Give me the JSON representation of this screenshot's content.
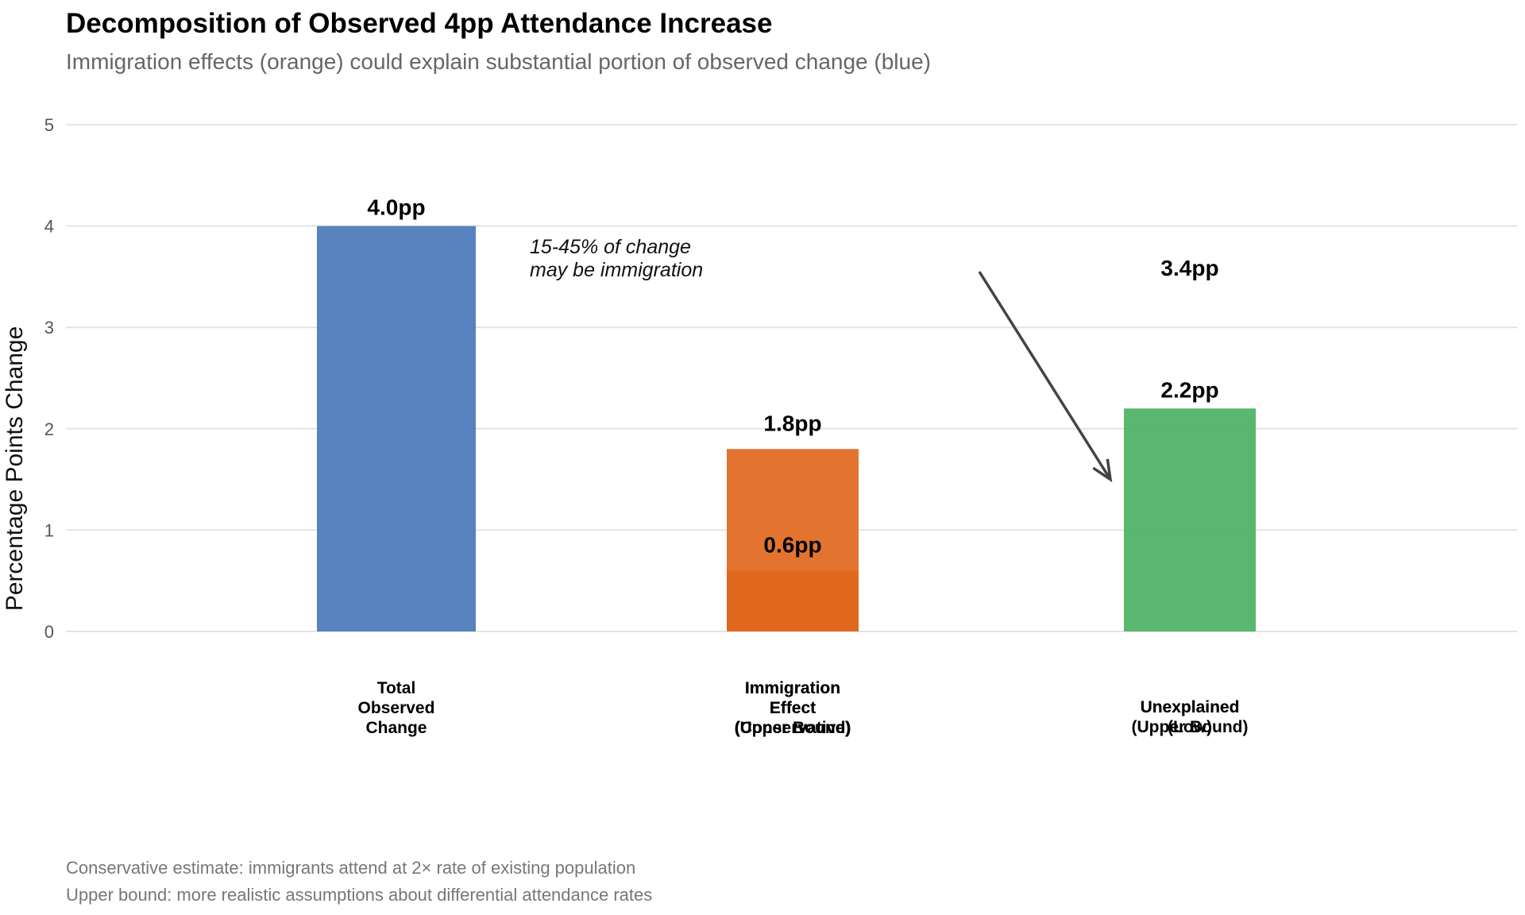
{
  "title": "Decomposition of Observed 4pp Attendance Increase",
  "subtitle": "Immigration effects (orange) could explain substantial portion of observed change (blue)",
  "captions": [
    "Conservative estimate: immigrants attend at 2× rate of existing population",
    "Upper bound: more realistic assumptions about differential attendance rates"
  ],
  "chart_data": {
    "type": "bar",
    "ylabel": "Percentage Points Change",
    "ylim": [
      0,
      5
    ],
    "yticks": [
      0,
      1,
      2,
      3,
      4,
      5
    ],
    "grid": true,
    "legend": "none",
    "bars": [
      {
        "category": "Total\nObserved\nChange",
        "value": 4.0,
        "label": "4.0pp",
        "color": "#4a78b8"
      },
      {
        "category": "Immigration\nEffect\n(Conservative)",
        "value": 0.6,
        "label": "0.6pp",
        "color": "#e0681e"
      },
      {
        "category": "Immigration\nEffect\n(Upper Bound)",
        "value": 1.8,
        "label": "1.8pp",
        "color": "#e0681e"
      },
      {
        "category": "Unexplained\n(Low)",
        "value": 3.4,
        "label": "3.4pp",
        "color": "#4cb163"
      },
      {
        "category": "Unexplained\n(Upper Bound)",
        "value": 2.2,
        "label": "2.2pp",
        "color": "#4cb163"
      }
    ],
    "annotation": {
      "text": [
        "15-45% of change",
        "may be immigration"
      ],
      "arrow_from": {
        "x": 1.47,
        "y": 3.55
      },
      "arrow_to": {
        "x": 1.8,
        "y": 1.5
      }
    }
  }
}
